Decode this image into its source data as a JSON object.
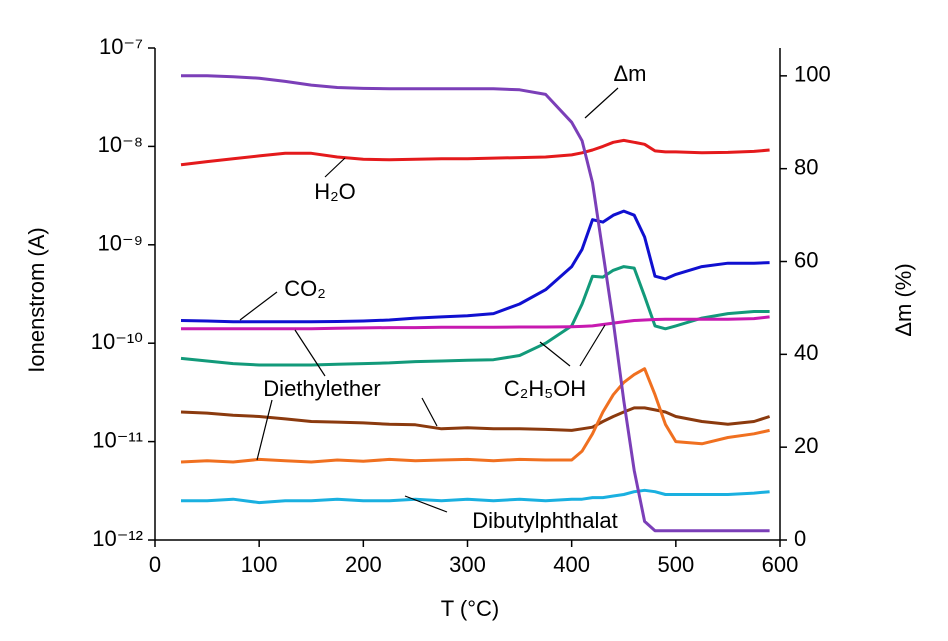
{
  "chart_data": {
    "type": "line",
    "xlabel": "T (°C)",
    "ylabel": "Ionenstrom (A)",
    "y2label": "Δm (%)",
    "x": [
      25,
      50,
      75,
      100,
      125,
      150,
      175,
      200,
      225,
      250,
      275,
      300,
      325,
      350,
      375,
      400,
      410,
      420,
      430,
      440,
      450,
      460,
      470,
      480,
      490,
      500,
      525,
      550,
      575,
      590
    ],
    "xlim": [
      0,
      600
    ],
    "xticks": [
      0,
      100,
      200,
      300,
      400,
      500,
      600
    ],
    "yscale": "log",
    "ylim": [
      1e-12,
      1e-07
    ],
    "yticks": [
      {
        "value": 1e-12,
        "label": "10⁻¹²"
      },
      {
        "value": 1e-11,
        "label": "10⁻¹¹"
      },
      {
        "value": 1e-10,
        "label": "10⁻¹⁰"
      },
      {
        "value": 1e-09,
        "label": "10⁻⁹"
      },
      {
        "value": 1e-08,
        "label": "10⁻⁸"
      },
      {
        "value": 1e-07,
        "label": "10⁻⁷"
      }
    ],
    "y2lim": [
      0,
      106
    ],
    "y2ticks": [
      0,
      20,
      40,
      60,
      80,
      100
    ],
    "grid": false,
    "annotations": [
      "Δm",
      "H₂O",
      "CO₂",
      "Diethylether",
      "C₂H₅OH",
      "Dibutylphthalat"
    ],
    "series": [
      {
        "color": "#e41a1c",
        "values": [
          6.5e-09,
          7e-09,
          7.5e-09,
          8e-09,
          8.5e-09,
          8.5e-09,
          7.8e-09,
          7.4e-09,
          7.3e-09,
          7.4e-09,
          7.5e-09,
          7.5e-09,
          7.6e-09,
          7.7e-09,
          7.8e-09,
          8.2e-09,
          8.6e-09,
          9.2e-09,
          1e-08,
          1.1e-08,
          1.15e-08,
          1.1e-08,
          1.05e-08,
          9e-09,
          8.8e-09,
          8.8e-09,
          8.6e-09,
          8.7e-09,
          8.9e-09,
          9.2e-09
        ]
      },
      {
        "color": "#1010d0",
        "values": [
          1.7e-10,
          1.68e-10,
          1.65e-10,
          1.65e-10,
          1.65e-10,
          1.65e-10,
          1.66e-10,
          1.68e-10,
          1.72e-10,
          1.8e-10,
          1.85e-10,
          1.9e-10,
          2e-10,
          2.5e-10,
          3.5e-10,
          6e-10,
          9e-10,
          1.8e-09,
          1.7e-09,
          2e-09,
          2.2e-09,
          2e-09,
          1.2e-09,
          4.8e-10,
          4.5e-10,
          5e-10,
          6e-10,
          6.5e-10,
          6.5e-10,
          6.6e-10
        ]
      },
      {
        "color": "#129a7a",
        "values": [
          7e-11,
          6.6e-11,
          6.2e-11,
          6e-11,
          6e-11,
          6e-11,
          6.1e-11,
          6.2e-11,
          6.3e-11,
          6.5e-11,
          6.6e-11,
          6.7e-11,
          6.8e-11,
          7.5e-11,
          1e-10,
          1.5e-10,
          2.5e-10,
          4.8e-10,
          4.7e-10,
          5.5e-10,
          6e-10,
          5.8e-10,
          3e-10,
          1.5e-10,
          1.4e-10,
          1.5e-10,
          1.8e-10,
          2e-10,
          2.1e-10,
          2.1e-10
        ]
      },
      {
        "color": "#c71ab0",
        "values": [
          1.4e-10,
          1.4e-10,
          1.4e-10,
          1.4e-10,
          1.4e-10,
          1.4e-10,
          1.42e-10,
          1.43e-10,
          1.44e-10,
          1.44e-10,
          1.45e-10,
          1.45e-10,
          1.45e-10,
          1.46e-10,
          1.46e-10,
          1.47e-10,
          1.48e-10,
          1.5e-10,
          1.55e-10,
          1.6e-10,
          1.65e-10,
          1.7e-10,
          1.72e-10,
          1.74e-10,
          1.75e-10,
          1.75e-10,
          1.75e-10,
          1.75e-10,
          1.78e-10,
          1.85e-10
        ]
      },
      {
        "color": "#8b3a0e",
        "values": [
          2e-11,
          1.95e-11,
          1.85e-11,
          1.8e-11,
          1.7e-11,
          1.6e-11,
          1.58e-11,
          1.55e-11,
          1.5e-11,
          1.48e-11,
          1.35e-11,
          1.38e-11,
          1.35e-11,
          1.35e-11,
          1.33e-11,
          1.3e-11,
          1.35e-11,
          1.4e-11,
          1.6e-11,
          1.8e-11,
          2e-11,
          2.2e-11,
          2.2e-11,
          2.1e-11,
          2e-11,
          1.8e-11,
          1.6e-11,
          1.5e-11,
          1.6e-11,
          1.8e-11
        ]
      },
      {
        "color": "#f07020",
        "values": [
          6.2e-12,
          6.4e-12,
          6.2e-12,
          6.6e-12,
          6.4e-12,
          6.2e-12,
          6.5e-12,
          6.3e-12,
          6.6e-12,
          6.4e-12,
          6.5e-12,
          6.6e-12,
          6.4e-12,
          6.6e-12,
          6.5e-12,
          6.5e-12,
          8e-12,
          1.2e-11,
          2e-11,
          3e-11,
          4e-11,
          4.8e-11,
          5.5e-11,
          3e-11,
          1.5e-11,
          1e-11,
          9.5e-12,
          1.1e-11,
          1.2e-11,
          1.3e-11
        ]
      },
      {
        "color": "#1ab0e0",
        "values": [
          2.5e-12,
          2.5e-12,
          2.6e-12,
          2.4e-12,
          2.5e-12,
          2.5e-12,
          2.6e-12,
          2.5e-12,
          2.5e-12,
          2.6e-12,
          2.5e-12,
          2.6e-12,
          2.5e-12,
          2.6e-12,
          2.5e-12,
          2.6e-12,
          2.6e-12,
          2.7e-12,
          2.7e-12,
          2.8e-12,
          2.9e-12,
          3.1e-12,
          3.2e-12,
          3.1e-12,
          2.9e-12,
          2.9e-12,
          2.9e-12,
          2.9e-12,
          3e-12,
          3.1e-12
        ]
      },
      {
        "color": "#7b3fb8",
        "axis": "y2",
        "values": [
          100,
          100,
          99.8,
          99.5,
          98.8,
          98,
          97.5,
          97.3,
          97.2,
          97.2,
          97.2,
          97.2,
          97.2,
          97,
          96,
          90,
          86,
          77,
          62,
          47,
          30,
          15,
          4,
          2,
          2,
          2,
          2,
          2,
          2,
          2
        ]
      }
    ]
  }
}
